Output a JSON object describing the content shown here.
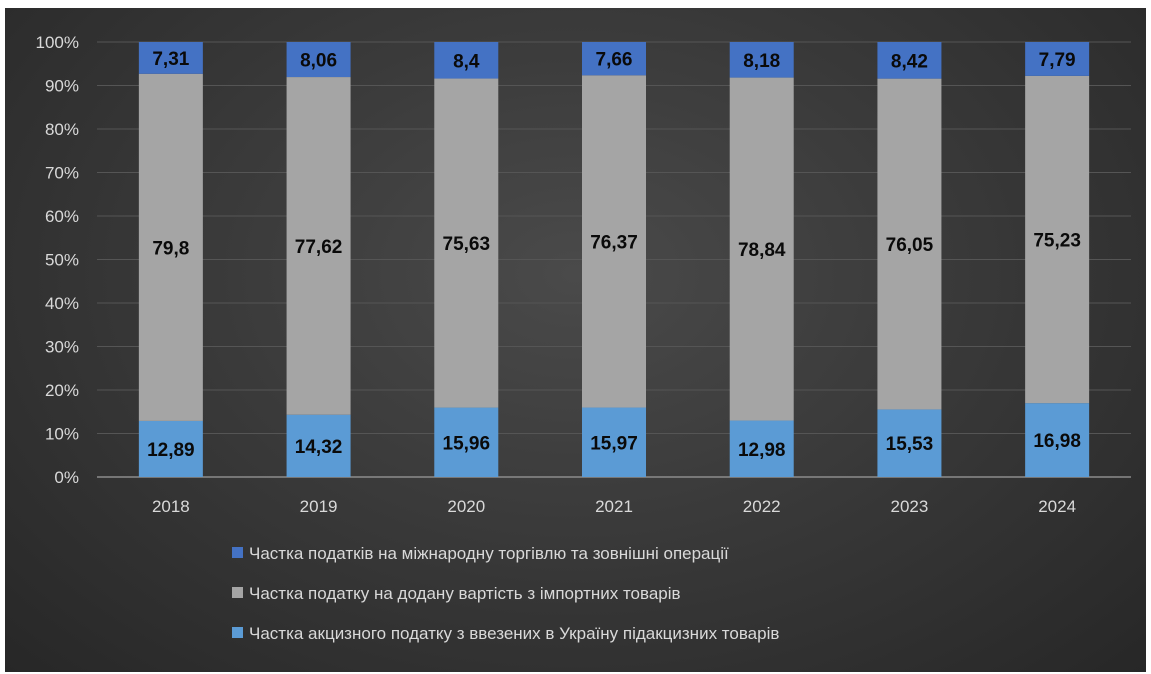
{
  "chart_data": {
    "type": "bar",
    "stacked": true,
    "percent_stacked": true,
    "categories": [
      "2018",
      "2019",
      "2020",
      "2021",
      "2022",
      "2023",
      "2024"
    ],
    "series": [
      {
        "name": "Частка акцизного податку з ввезених в Україну підакцизних товарів",
        "color": "#5b9bd5",
        "values": [
          12.89,
          14.32,
          15.96,
          15.97,
          12.98,
          15.53,
          16.98
        ],
        "labels": [
          "12,89",
          "14,32",
          "15,96",
          "15,97",
          "12,98",
          "15,53",
          "16,98"
        ]
      },
      {
        "name": "Частка податку на додану вартість з імпортних товарів",
        "color": "#a5a5a5",
        "values": [
          79.8,
          77.62,
          75.63,
          76.37,
          78.84,
          76.05,
          75.23
        ],
        "labels": [
          "79,8",
          "77,62",
          "75,63",
          "76,37",
          "78,84",
          "76,05",
          "75,23"
        ]
      },
      {
        "name": "Частка податків на міжнародну торгівлю та зовнішні операції",
        "color": "#4472c4",
        "values": [
          7.31,
          8.06,
          8.4,
          7.66,
          8.18,
          8.42,
          7.79
        ],
        "labels": [
          "7,31",
          "8,06",
          "8,4",
          "7,66",
          "8,18",
          "8,42",
          "7,79"
        ]
      }
    ],
    "y_ticks": [
      "0%",
      "10%",
      "20%",
      "30%",
      "40%",
      "50%",
      "60%",
      "70%",
      "80%",
      "90%",
      "100%"
    ],
    "ylim": [
      0,
      100
    ],
    "grid": true,
    "legend_position": "bottom",
    "legend_order": [
      2,
      1,
      0
    ],
    "colors": {
      "background": "#333333",
      "grid": "#555555",
      "text": "#d9d9d9",
      "data_label": "#0a0a0a"
    }
  }
}
